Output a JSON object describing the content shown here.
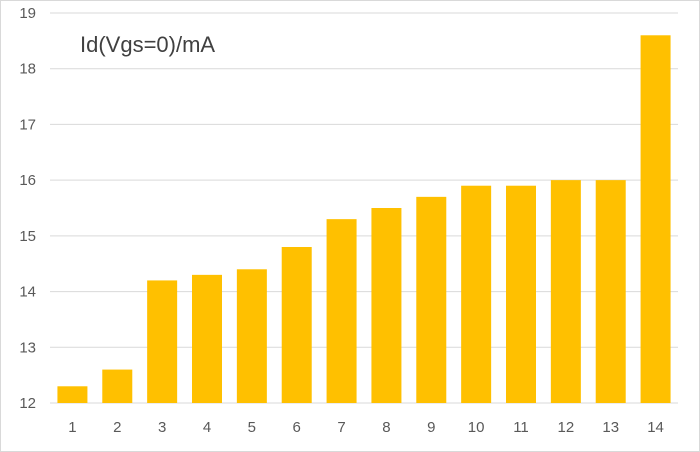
{
  "chart_data": {
    "type": "bar",
    "title": "Id(Vgs=0)/mA",
    "xlabel": "",
    "ylabel": "",
    "categories": [
      "1",
      "2",
      "3",
      "4",
      "5",
      "6",
      "7",
      "8",
      "9",
      "10",
      "11",
      "12",
      "13",
      "14"
    ],
    "values": [
      12.3,
      12.6,
      14.2,
      14.3,
      14.4,
      14.8,
      15.3,
      15.5,
      15.7,
      15.9,
      15.9,
      16.0,
      16.0,
      18.6
    ],
    "ylim": [
      12,
      19
    ],
    "yticks": [
      "12",
      "13",
      "14",
      "15",
      "16",
      "17",
      "18",
      "19"
    ],
    "grid": "horizontal",
    "legend": "none",
    "bar_color": "#FFC000",
    "grid_color": "#D9D9D9",
    "label_color": "#595959"
  }
}
